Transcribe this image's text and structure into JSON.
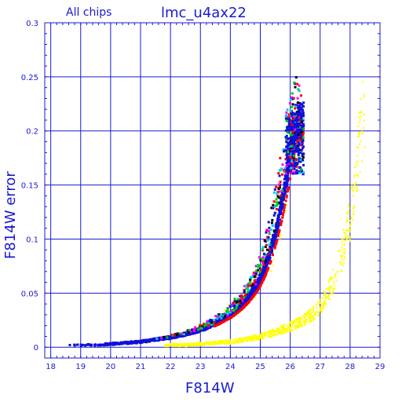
{
  "chart_data": {
    "type": "scatter",
    "title": "lmc_u4ax22",
    "subtitle": "All chips",
    "xlabel": "F814W",
    "ylabel": "F814W error",
    "xlim": [
      17.8,
      29
    ],
    "ylim": [
      -0.01,
      0.3
    ],
    "grid": true,
    "xticks": [
      "18",
      "19",
      "20",
      "21",
      "22",
      "23",
      "24",
      "25",
      "26",
      "27",
      "28",
      "29"
    ],
    "yticks": [
      "0",
      "0.05",
      "0.1",
      "0.15",
      "0.2",
      "0.25",
      "0.3"
    ],
    "colors": {
      "axis": "#1a1ad0",
      "grid": "#1a1ad0",
      "text": "#1a1ad0",
      "main_sequence": "#1010d8",
      "secondary_sequence": "#ffff00",
      "scatter_colors": [
        "#ff0000",
        "#00cc00",
        "#000000",
        "#00ccff",
        "#ff00ff",
        "#1010d8"
      ]
    },
    "series": [
      {
        "color": "#1010d8",
        "x": [
          18.3,
          19.0,
          19.5,
          20.0,
          20.5,
          21.0,
          21.5,
          22.0,
          22.5,
          23.0,
          23.5,
          24.0,
          24.3,
          24.6,
          24.9,
          25.1,
          25.3,
          25.5,
          25.7,
          25.9,
          26.1,
          26.3,
          26.5
        ],
        "y": [
          0.002,
          0.002,
          0.002,
          0.003,
          0.004,
          0.005,
          0.007,
          0.009,
          0.012,
          0.016,
          0.022,
          0.03,
          0.037,
          0.046,
          0.058,
          0.07,
          0.085,
          0.105,
          0.13,
          0.16,
          0.195,
          0.212,
          0.215
        ]
      },
      {
        "color": "#ffff00",
        "x": [
          22.0,
          22.5,
          23.0,
          23.5,
          24.0,
          24.5,
          25.0,
          25.5,
          26.0,
          26.5,
          26.8,
          27.0,
          27.2,
          27.4,
          27.6,
          27.8,
          28.0,
          28.2,
          28.4
        ],
        "y": [
          0.002,
          0.002,
          0.003,
          0.004,
          0.005,
          0.007,
          0.01,
          0.014,
          0.019,
          0.026,
          0.032,
          0.038,
          0.046,
          0.058,
          0.075,
          0.095,
          0.12,
          0.16,
          0.21
        ]
      }
    ]
  }
}
